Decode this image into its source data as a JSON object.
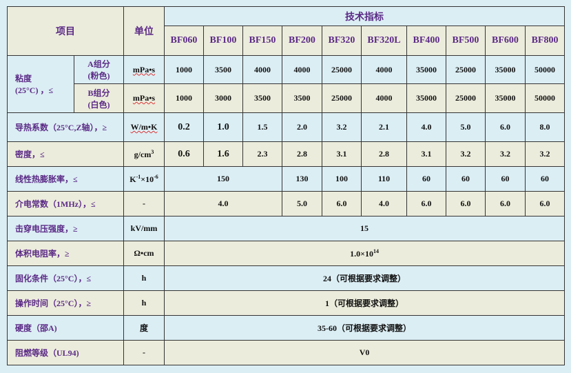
{
  "header": {
    "item": "项目",
    "unit": "单位",
    "spec": "技术指标"
  },
  "models": [
    "BF060",
    "BF100",
    "BF150",
    "BF200",
    "BF320",
    "BF320L",
    "BF400",
    "BF500",
    "BF600",
    "BF800"
  ],
  "viscosity": {
    "label": "粘度",
    "label2": "(25°C) ，≤",
    "a": {
      "label": "A组分",
      "label2": "(粉色)",
      "unit": "mPa•s",
      "values": [
        "1000",
        "3500",
        "4000",
        "4000",
        "25000",
        "4000",
        "35000",
        "25000",
        "35000",
        "50000"
      ]
    },
    "b": {
      "label": "B组分",
      "label2": "(白色)",
      "unit": "mPa•s",
      "values": [
        "1000",
        "3000",
        "3500",
        "3500",
        "25000",
        "4000",
        "35000",
        "25000",
        "35000",
        "50000"
      ]
    }
  },
  "thermal": {
    "label": "导热系数（25°C,Z轴），≥",
    "unit": "W/m•K",
    "values": [
      "0.2",
      "1.0",
      "1.5",
      "2.0",
      "3.2",
      "2.1",
      "4.0",
      "5.0",
      "6.0",
      "8.0"
    ]
  },
  "density": {
    "label": "密度，≤",
    "unit": "g/cm",
    "unit_sup": "3",
    "values": [
      "0.6",
      "1.6",
      "2.3",
      "2.8",
      "3.1",
      "2.8",
      "3.1",
      "3.2",
      "3.2",
      "3.2"
    ]
  },
  "cte": {
    "label": "线性热膨胀率，≤",
    "unit_a": "K",
    "unit_sup1": "-1",
    "unit_b": "×10",
    "unit_sup2": "-6",
    "values": [
      "150",
      "130",
      "100",
      "110",
      "60",
      "60",
      "60",
      "60"
    ]
  },
  "dielectric": {
    "label": "介电常数（1MHz），≤",
    "unit": "-",
    "values": [
      "4.0",
      "5.0",
      "6.0",
      "4.0",
      "6.0",
      "6.0",
      "6.0",
      "6.0"
    ]
  },
  "breakdown": {
    "label": "击穿电压强度，≥",
    "unit": "kV/mm",
    "value": "15"
  },
  "resistivity": {
    "label": "体积电阻率，≥",
    "unit": "Ω•cm",
    "value": "1.0×10",
    "value_sup": "14"
  },
  "curing": {
    "label": "固化条件（25°C），≤",
    "unit": "h",
    "value": "24（可根据要求调整）"
  },
  "worktime": {
    "label": "操作时间（25°C），≥",
    "unit": "h",
    "value": "1（可根据要求调整）"
  },
  "hardness": {
    "label": "硬度（邵A)",
    "unit": "度",
    "value": "35-60（可根据要求调整）"
  },
  "flame": {
    "label": "阻燃等级（UL94)",
    "unit": "-",
    "value": "V0"
  },
  "colors": {
    "blue": "#dbeef4",
    "beige": "#ececdc",
    "purple": "#5b2a86"
  }
}
